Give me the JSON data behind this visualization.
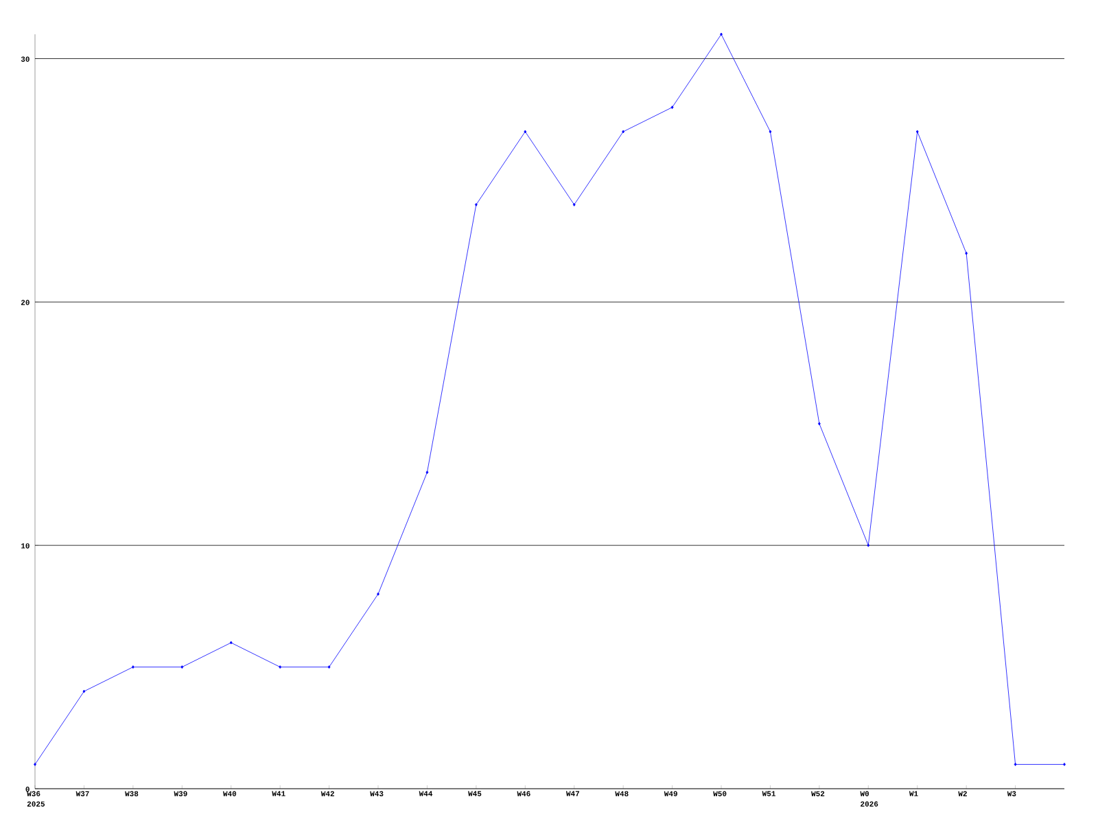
{
  "chart_data": {
    "type": "line",
    "categories": [
      "W36 2025",
      "W37",
      "W38",
      "W39",
      "W40",
      "W41",
      "W42",
      "W43",
      "W44",
      "W45",
      "W46",
      "W47",
      "W48",
      "W49",
      "W50",
      "W51",
      "W52",
      "W0 2026",
      "W1",
      "W2",
      "W3",
      null
    ],
    "series": [
      {
        "color": "#0000ff",
        "values": [
          1,
          4,
          5,
          5,
          6,
          5,
          5,
          8,
          13,
          24,
          27,
          24,
          27,
          28,
          31,
          27,
          15,
          10,
          27,
          22,
          1,
          1
        ]
      }
    ],
    "ylim": [
      0,
      31
    ],
    "yticks": [
      0,
      10,
      20,
      30
    ],
    "grid": "y",
    "marker": "diamond"
  }
}
